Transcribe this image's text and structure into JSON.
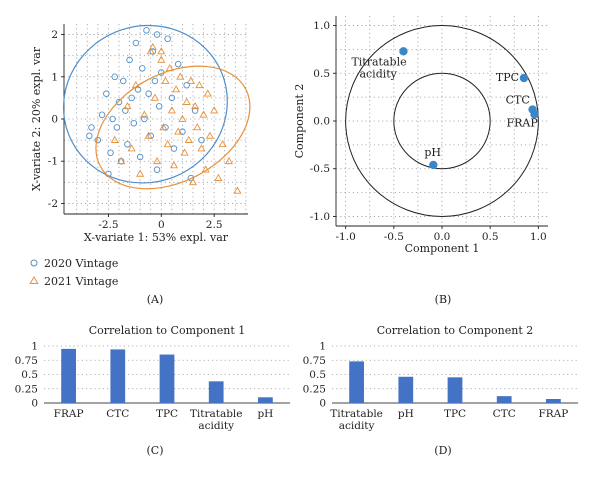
{
  "panels": {
    "a": "(A)",
    "b": "(B)",
    "c": "(C)",
    "d": "(D)"
  },
  "chart_data": [
    {
      "type": "scatter",
      "xlabel": "X-variate 1: 53% expl. var",
      "ylabel": "X-variate 2: 20% expl. var",
      "xlim": [
        -4.6,
        4.1
      ],
      "ylim": [
        -2.25,
        2.25
      ],
      "xticks": [
        "-2.5",
        "0",
        "2.5"
      ],
      "xtick_values": [
        -2.5,
        0,
        2.5
      ],
      "yticks": [
        "-2",
        "-1",
        "0",
        "1",
        "2"
      ],
      "ytick_values": [
        -2,
        -1,
        0,
        1,
        2
      ],
      "grid": true,
      "legend_position": "bottom-left",
      "series": [
        {
          "name": "2020 Vintage",
          "marker": "circle",
          "color": "#4f8fca",
          "ellipse": {
            "cx": -0.75,
            "cy": 0.35,
            "rx": 3.9,
            "ry": 1.85,
            "angle_deg": 22
          },
          "points": [
            [
              -3.3,
              -0.2
            ],
            [
              -3.0,
              -0.5
            ],
            [
              -2.8,
              0.1
            ],
            [
              -2.6,
              0.6
            ],
            [
              -2.5,
              -1.3
            ],
            [
              -2.4,
              -0.8
            ],
            [
              -2.2,
              1.0
            ],
            [
              -2.1,
              -0.2
            ],
            [
              -2.0,
              0.4
            ],
            [
              -1.9,
              -1.0
            ],
            [
              -1.8,
              0.9
            ],
            [
              -1.7,
              0.2
            ],
            [
              -1.6,
              -0.6
            ],
            [
              -1.5,
              1.4
            ],
            [
              -1.4,
              0.5
            ],
            [
              -1.3,
              -0.1
            ],
            [
              -1.2,
              1.8
            ],
            [
              -1.1,
              0.7
            ],
            [
              -1.0,
              -0.9
            ],
            [
              -0.9,
              1.2
            ],
            [
              -0.8,
              0.0
            ],
            [
              -0.7,
              2.1
            ],
            [
              -0.6,
              0.6
            ],
            [
              -0.5,
              -0.4
            ],
            [
              -0.4,
              1.6
            ],
            [
              -0.3,
              0.9
            ],
            [
              -0.2,
              -1.2
            ],
            [
              -0.1,
              0.3
            ],
            [
              0.0,
              1.1
            ],
            [
              0.2,
              -0.2
            ],
            [
              0.3,
              1.9
            ],
            [
              0.5,
              0.5
            ],
            [
              0.6,
              -0.7
            ],
            [
              0.8,
              1.3
            ],
            [
              1.0,
              -0.3
            ],
            [
              1.2,
              0.8
            ],
            [
              1.4,
              -1.4
            ],
            [
              1.6,
              0.2
            ],
            [
              1.9,
              -0.5
            ],
            [
              -3.4,
              -0.4
            ],
            [
              -2.3,
              0.0
            ],
            [
              -0.2,
              2.0
            ]
          ]
        },
        {
          "name": "2021 Vintage",
          "marker": "triangle",
          "color": "#e8913a",
          "ellipse": {
            "cx": 0.55,
            "cy": -0.2,
            "rx": 2.55,
            "ry": 1.95,
            "angle_deg": -62
          },
          "points": [
            [
              -2.2,
              -0.5
            ],
            [
              -1.9,
              -1.0
            ],
            [
              -1.6,
              0.3
            ],
            [
              -1.4,
              -0.7
            ],
            [
              -1.2,
              0.8
            ],
            [
              -1.0,
              -1.3
            ],
            [
              -0.8,
              0.1
            ],
            [
              -0.6,
              -0.4
            ],
            [
              -0.5,
              1.6
            ],
            [
              -0.3,
              0.5
            ],
            [
              -0.2,
              -1.0
            ],
            [
              0.0,
              1.4
            ],
            [
              0.1,
              -0.2
            ],
            [
              0.2,
              0.9
            ],
            [
              0.3,
              -0.6
            ],
            [
              0.4,
              1.2
            ],
            [
              0.5,
              0.2
            ],
            [
              0.6,
              -1.1
            ],
            [
              0.7,
              0.7
            ],
            [
              0.8,
              -0.3
            ],
            [
              0.9,
              1.0
            ],
            [
              1.0,
              0.0
            ],
            [
              1.1,
              -0.8
            ],
            [
              1.2,
              0.4
            ],
            [
              1.3,
              -0.5
            ],
            [
              1.4,
              0.9
            ],
            [
              1.5,
              -1.5
            ],
            [
              1.6,
              0.3
            ],
            [
              1.7,
              -0.2
            ],
            [
              1.8,
              0.8
            ],
            [
              1.9,
              -0.7
            ],
            [
              2.0,
              0.1
            ],
            [
              2.1,
              -1.2
            ],
            [
              2.2,
              0.6
            ],
            [
              2.3,
              -0.4
            ],
            [
              2.5,
              0.2
            ],
            [
              2.7,
              -1.4
            ],
            [
              2.9,
              -0.6
            ],
            [
              3.2,
              -1.0
            ],
            [
              3.6,
              -1.7
            ],
            [
              -0.4,
              1.7
            ],
            [
              0.0,
              1.6
            ]
          ]
        }
      ]
    },
    {
      "type": "scatter",
      "xlabel": "Component 1",
      "ylabel": "Component 2",
      "xlim": [
        -1.1,
        1.1
      ],
      "ylim": [
        -1.1,
        1.1
      ],
      "xticks": [
        "-1.0",
        "-0.5",
        "0.0",
        "0.5",
        "1.0"
      ],
      "xtick_values": [
        -1.0,
        -0.5,
        0.0,
        0.5,
        1.0
      ],
      "yticks": [
        "-1.0",
        "-0.5",
        "0.0",
        "0.5",
        "1.0"
      ],
      "ytick_values": [
        -1.0,
        -0.5,
        0.0,
        0.5,
        1.0
      ],
      "grid": true,
      "circles": [
        1.0,
        0.5
      ],
      "point_color": "#3a87c8",
      "points": [
        {
          "label": "Titratable acidity",
          "label_lines": [
            "Titratable",
            "acidity"
          ],
          "x": -0.4,
          "y": 0.73
        },
        {
          "label": "TPC",
          "x": 0.85,
          "y": 0.45
        },
        {
          "label": "CTC",
          "x": 0.94,
          "y": 0.12
        },
        {
          "label": "FRAP",
          "x": 0.96,
          "y": 0.07
        },
        {
          "label": "pH",
          "x": -0.09,
          "y": -0.46
        }
      ]
    },
    {
      "type": "bar",
      "title": "Correlation to Component 1",
      "categories": [
        "FRAP",
        "CTC",
        "TPC",
        "Titratable acidity",
        "pH"
      ],
      "category_lines": [
        [
          "FRAP"
        ],
        [
          "CTC"
        ],
        [
          "TPC"
        ],
        [
          "Titratable",
          "acidity"
        ],
        [
          "pH"
        ]
      ],
      "values": [
        0.95,
        0.94,
        0.85,
        0.38,
        0.1
      ],
      "ylim": [
        0,
        1
      ],
      "yticks": [
        "0",
        "0.25",
        "0.5",
        "0.75",
        "1"
      ],
      "ytick_values": [
        0,
        0.25,
        0.5,
        0.75,
        1
      ],
      "color": "#4472c4",
      "grid": true
    },
    {
      "type": "bar",
      "title": "Correlation to Component 2",
      "categories": [
        "Titratable acidity",
        "pH",
        "TPC",
        "CTC",
        "FRAP"
      ],
      "category_lines": [
        [
          "Titratable",
          "acidity"
        ],
        [
          "pH"
        ],
        [
          "TPC"
        ],
        [
          "CTC"
        ],
        [
          "FRAP"
        ]
      ],
      "values": [
        0.73,
        0.46,
        0.45,
        0.12,
        0.07
      ],
      "ylim": [
        0,
        1
      ],
      "yticks": [
        "0",
        "0.25",
        "0.5",
        "0.75",
        "1"
      ],
      "ytick_values": [
        0,
        0.25,
        0.5,
        0.75,
        1
      ],
      "color": "#4472c4",
      "grid": true
    }
  ]
}
